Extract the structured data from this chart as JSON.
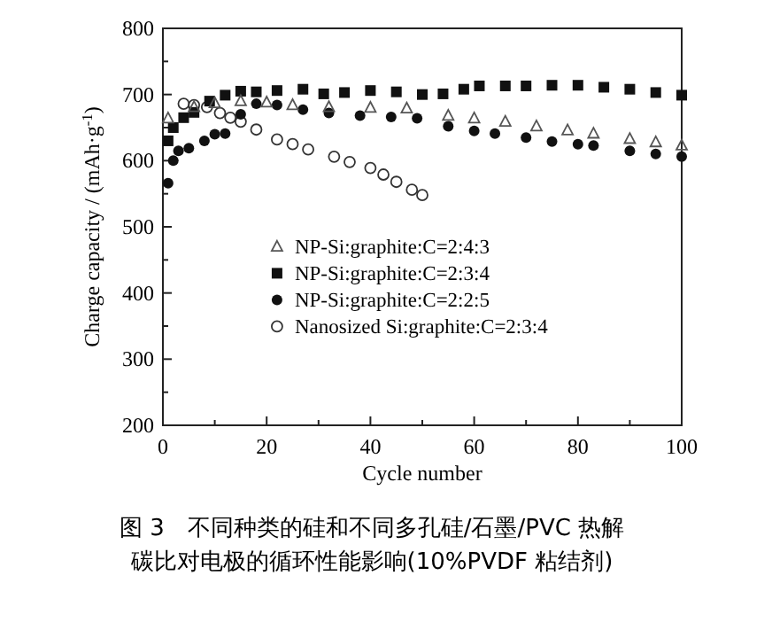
{
  "chart_data": {
    "type": "scatter",
    "xlabel": "Cycle number",
    "ylabel": "Charge capacity / (mAh·g$^{-1}$)",
    "xlim": [
      0,
      100
    ],
    "ylim": [
      200,
      800
    ],
    "xticks": [
      0,
      {
        "value": 10,
        "label": null
      },
      20,
      {
        "value": 30,
        "label": null
      },
      40,
      {
        "value": 50,
        "label": null
      },
      60,
      {
        "value": 70,
        "label": null
      },
      80,
      {
        "value": 90,
        "label": null
      },
      100
    ],
    "yticks": [
      200,
      {
        "value": 250,
        "label": null
      },
      300,
      {
        "value": 350,
        "label": null
      },
      400,
      {
        "value": 450,
        "label": null
      },
      500,
      {
        "value": 550,
        "label": null
      },
      600,
      {
        "value": 650,
        "label": null
      },
      700,
      {
        "value": 750,
        "label": null
      },
      800
    ],
    "legend": "bottom",
    "grid": false,
    "series": [
      {
        "name": "NP-Si:graphite:C=2:4:3",
        "color": "#555555",
        "marker": "triangle",
        "x": [
          1,
          6,
          10,
          15,
          20,
          25,
          32,
          40,
          47,
          55,
          60,
          66,
          72,
          78,
          83,
          90,
          95,
          100
        ],
        "values": [
          664,
          681,
          687,
          690,
          688,
          684,
          681,
          680,
          679,
          668,
          664,
          659,
          652,
          646,
          641,
          633,
          628,
          623
        ]
      },
      {
        "name": "NP-Si:graphite:C=2:3:4",
        "color": "#111111",
        "marker": "square",
        "x": [
          1,
          2,
          4,
          6,
          9,
          12,
          15,
          18,
          22,
          27,
          31,
          35,
          40,
          45,
          50,
          54,
          58,
          61,
          66,
          70,
          75,
          80,
          85,
          90,
          95,
          100
        ],
        "values": [
          630,
          650,
          665,
          673,
          690,
          699,
          705,
          704,
          706,
          708,
          701,
          703,
          706,
          704,
          700,
          701,
          708,
          713,
          713,
          713,
          714,
          714,
          711,
          708,
          703,
          699
        ]
      },
      {
        "name": "NP-Si:graphite:C=2:2:5",
        "color": "#111111",
        "marker": "circle",
        "x": [
          1,
          2,
          3,
          5,
          8,
          10,
          12,
          15,
          18,
          22,
          27,
          32,
          38,
          44,
          49,
          55,
          60,
          64,
          70,
          75,
          80,
          83,
          90,
          95,
          100
        ],
        "values": [
          566,
          600,
          615,
          619,
          630,
          640,
          641,
          670,
          686,
          684,
          677,
          672,
          668,
          666,
          664,
          652,
          645,
          641,
          635,
          629,
          625,
          623,
          615,
          610,
          606
        ]
      },
      {
        "name": "Nanosized Si:graphite:C=2:3:4",
        "color": "#333333",
        "marker": "open-circle",
        "x": [
          4,
          6,
          8.5,
          11,
          13,
          15,
          18,
          22,
          25,
          28,
          33,
          36,
          40,
          42.5,
          45,
          48,
          50
        ],
        "values": [
          686,
          684,
          681,
          672,
          665,
          659,
          647,
          632,
          625,
          617,
          606,
          598,
          589,
          579,
          568,
          556,
          548
        ]
      }
    ],
    "annotations": [
      "图 3　不同种类的硅和不同多孔硅/石墨/PVC 热解碳比对电极的循环性能影响(10%PVDF 粘结剂)"
    ]
  }
}
